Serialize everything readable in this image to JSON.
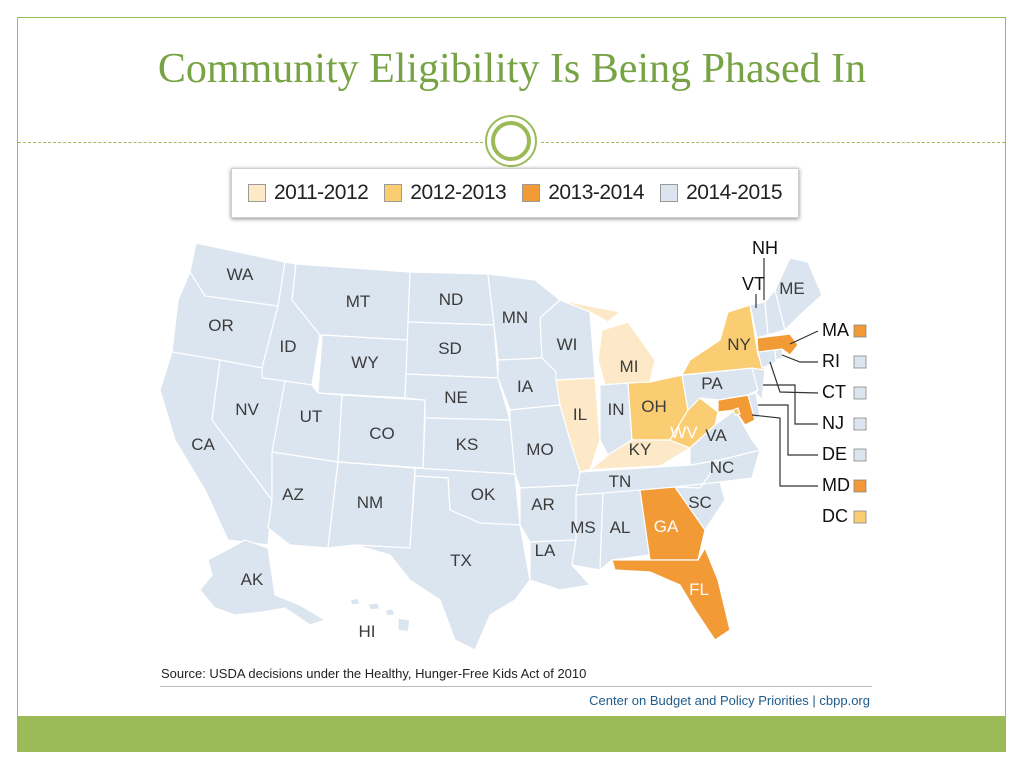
{
  "slide": {
    "title": "Community Eligibility Is Being Phased In",
    "source": "Source: USDA decisions under the Healthy, Hunger-Free Kids Act of 2010",
    "credit": "Center on Budget and Policy Priorities | cbpp.org"
  },
  "legend": [
    {
      "label": "2011-2012",
      "color": "#fde9c8"
    },
    {
      "label": "2012-2013",
      "color": "#fbcd72"
    },
    {
      "label": "2013-2014",
      "color": "#f29a36"
    },
    {
      "label": "2014-2015",
      "color": "#dbe5f0"
    }
  ],
  "map": {
    "default_color": "#dbe5f0",
    "states": {
      "WA": "2014-2015",
      "OR": "2014-2015",
      "CA": "2014-2015",
      "ID": "2014-2015",
      "NV": "2014-2015",
      "MT": "2014-2015",
      "WY": "2014-2015",
      "UT": "2014-2015",
      "AZ": "2014-2015",
      "CO": "2014-2015",
      "NM": "2014-2015",
      "ND": "2014-2015",
      "SD": "2014-2015",
      "NE": "2014-2015",
      "KS": "2014-2015",
      "OK": "2014-2015",
      "TX": "2014-2015",
      "MN": "2014-2015",
      "IA": "2014-2015",
      "MO": "2014-2015",
      "AR": "2014-2015",
      "LA": "2014-2015",
      "WI": "2014-2015",
      "IL": "2011-2012",
      "MI": "2011-2012",
      "IN": "2014-2015",
      "OH": "2012-2013",
      "KY": "2011-2012",
      "TN": "2014-2015",
      "MS": "2014-2015",
      "AL": "2014-2015",
      "GA": "2013-2014",
      "FL": "2013-2014",
      "SC": "2014-2015",
      "NC": "2014-2015",
      "VA": "2014-2015",
      "WV": "2012-2013",
      "PA": "2014-2015",
      "NY": "2012-2013",
      "VT": "2014-2015",
      "NH": "2014-2015",
      "ME": "2014-2015",
      "MA": "2013-2014",
      "RI": "2014-2015",
      "CT": "2014-2015",
      "NJ": "2014-2015",
      "DE": "2014-2015",
      "MD": "2013-2014",
      "DC": "2012-2013",
      "AK": "2014-2015",
      "HI": "2014-2015"
    },
    "side_labels": [
      {
        "label": "MA",
        "color": "#f29a36"
      },
      {
        "label": "RI",
        "color": "#dbe5f0"
      },
      {
        "label": "CT",
        "color": "#dbe5f0"
      },
      {
        "label": "NJ",
        "color": "#dbe5f0"
      },
      {
        "label": "DE",
        "color": "#dbe5f0"
      },
      {
        "label": "MD",
        "color": "#f29a36"
      },
      {
        "label": "DC",
        "color": "#fbcd72"
      }
    ],
    "top_labels": [
      "NH",
      "VT"
    ]
  }
}
